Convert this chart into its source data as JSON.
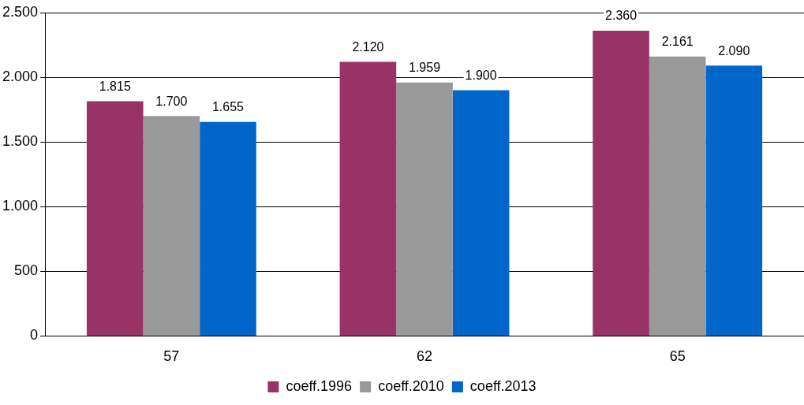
{
  "chart_data": {
    "type": "bar",
    "categories": [
      "57",
      "62",
      "65"
    ],
    "series": [
      {
        "name": "coeff.1996",
        "color": "#993366",
        "values": [
          1815,
          2120,
          2360
        ],
        "value_labels": [
          "1.815",
          "2.120",
          "2.360"
        ]
      },
      {
        "name": "coeff.2010",
        "color": "#999999",
        "values": [
          1700,
          1959,
          2161
        ],
        "value_labels": [
          "1.700",
          "1.959",
          "2.161"
        ]
      },
      {
        "name": "coeff.2013",
        "color": "#0066cc",
        "values": [
          1655,
          1900,
          2090
        ],
        "value_labels": [
          "1.655",
          "1.900",
          "2.090"
        ]
      }
    ],
    "ylim": [
      0,
      2500
    ],
    "yticks": [
      0,
      500,
      {
        "value": 1000,
        "label": "1.000"
      },
      {
        "value": 1500,
        "label": "1.500"
      },
      {
        "value": 2000,
        "label": "2.000"
      },
      {
        "value": 2500,
        "label": "2.500"
      }
    ],
    "grid": "y",
    "legend": "bottom"
  }
}
